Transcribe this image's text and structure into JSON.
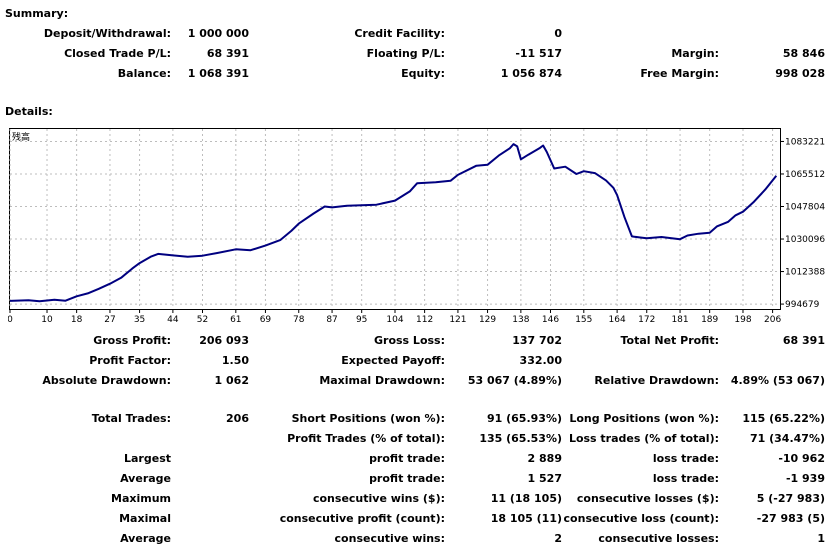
{
  "summary": {
    "heading": "Summary:",
    "deposit_label": "Deposit/Withdrawal:",
    "deposit_value": "1 000 000",
    "credit_label": "Credit Facility:",
    "credit_value": "0",
    "closed_pl_label": "Closed Trade P/L:",
    "closed_pl_value": "68 391",
    "floating_pl_label": "Floating P/L:",
    "floating_pl_value": "-11 517",
    "margin_label": "Margin:",
    "margin_value": "58 846",
    "balance_label": "Balance:",
    "balance_value": "1 068 391",
    "equity_label": "Equity:",
    "equity_value": "1 056 874",
    "free_margin_label": "Free Margin:",
    "free_margin_value": "998 028"
  },
  "details": {
    "heading": "Details:",
    "gross_profit_label": "Gross Profit:",
    "gross_profit_value": "206 093",
    "gross_loss_label": "Gross Loss:",
    "gross_loss_value": "137 702",
    "total_net_label": "Total Net Profit:",
    "total_net_value": "68 391",
    "profit_factor_label": "Profit Factor:",
    "profit_factor_value": "1.50",
    "expected_payoff_label": "Expected Payoff:",
    "expected_payoff_value": "332.00",
    "abs_dd_label": "Absolute Drawdown:",
    "abs_dd_value": "1 062",
    "max_dd_label": "Maximal Drawdown:",
    "max_dd_value": "53 067 (4.89%)",
    "rel_dd_label": "Relative Drawdown:",
    "rel_dd_value": "4.89% (53 067)",
    "total_trades_label": "Total Trades:",
    "total_trades_value": "206",
    "short_label": "Short Positions (won %):",
    "short_value": "91 (65.93%)",
    "long_label": "Long Positions (won %):",
    "long_value": "115 (65.22%)",
    "profit_trades_label": "Profit Trades (% of total):",
    "profit_trades_value": "135 (65.53%)",
    "loss_trades_label": "Loss trades (% of total):",
    "loss_trades_value": "71 (34.47%)",
    "largest_label": "Largest",
    "largest_profit_label": "profit trade:",
    "largest_profit_value": "2 889",
    "largest_loss_label": "loss trade:",
    "largest_loss_value": "-10 962",
    "average_label": "Average",
    "average_profit_label": "profit trade:",
    "average_profit_value": "1 527",
    "average_loss_label": "loss trade:",
    "average_loss_value": "-1 939",
    "maximum_label": "Maximum",
    "max_cons_wins_label": "consecutive wins ($):",
    "max_cons_wins_value": "11 (18 105)",
    "max_cons_losses_label": "consecutive losses ($):",
    "max_cons_losses_value": "5 (-27 983)",
    "maximal_label": "Maximal",
    "maximal_profit_label": "consecutive profit (count):",
    "maximal_profit_value": "18 105 (11)",
    "maximal_loss_label": "consecutive loss (count):",
    "maximal_loss_value": "-27 983 (5)",
    "average2_label": "Average",
    "avg_cons_wins_label": "consecutive wins:",
    "avg_cons_wins_value": "2",
    "avg_cons_losses_label": "consecutive losses:",
    "avg_cons_losses_value": "1"
  },
  "chart_data": {
    "type": "line",
    "title": "残高",
    "line_color": "#000080",
    "grid": true,
    "y_ticks": [
      "1083221",
      "1065512",
      "1047804",
      "1030096",
      "1012388",
      "994679"
    ],
    "x_ticks": [
      "0",
      "10",
      "18",
      "27",
      "35",
      "44",
      "52",
      "61",
      "69",
      "78",
      "87",
      "95",
      "104",
      "112",
      "121",
      "129",
      "138",
      "146",
      "155",
      "164",
      "172",
      "181",
      "189",
      "198",
      "206"
    ],
    "xlim": [
      0,
      208
    ],
    "ylim": [
      992000,
      1090000
    ],
    "series": [
      {
        "name": "残高",
        "points": [
          [
            0,
            996400
          ],
          [
            5,
            996800
          ],
          [
            8,
            996200
          ],
          [
            12,
            997000
          ],
          [
            15,
            996500
          ],
          [
            18,
            998900
          ],
          [
            21,
            1000500
          ],
          [
            24,
            1003000
          ],
          [
            27,
            1005800
          ],
          [
            30,
            1009000
          ],
          [
            33,
            1014000
          ],
          [
            35,
            1017000
          ],
          [
            38,
            1020500
          ],
          [
            40,
            1022000
          ],
          [
            44,
            1021200
          ],
          [
            48,
            1020500
          ],
          [
            52,
            1021000
          ],
          [
            56,
            1022500
          ],
          [
            61,
            1024500
          ],
          [
            65,
            1024000
          ],
          [
            69,
            1026500
          ],
          [
            73,
            1029500
          ],
          [
            76,
            1034500
          ],
          [
            78,
            1038500
          ],
          [
            82,
            1044000
          ],
          [
            85,
            1047800
          ],
          [
            87,
            1047300
          ],
          [
            91,
            1048200
          ],
          [
            95,
            1048500
          ],
          [
            99,
            1048800
          ],
          [
            104,
            1051000
          ],
          [
            108,
            1056000
          ],
          [
            110,
            1060500
          ],
          [
            115,
            1061000
          ],
          [
            119,
            1061800
          ],
          [
            121,
            1065000
          ],
          [
            126,
            1070000
          ],
          [
            129,
            1070500
          ],
          [
            132,
            1075500
          ],
          [
            135,
            1079500
          ],
          [
            136,
            1081800
          ],
          [
            137,
            1080500
          ],
          [
            138,
            1073500
          ],
          [
            140,
            1076000
          ],
          [
            143,
            1079500
          ],
          [
            144,
            1081000
          ],
          [
            145,
            1077500
          ],
          [
            147,
            1068500
          ],
          [
            150,
            1069500
          ],
          [
            153,
            1065500
          ],
          [
            155,
            1067000
          ],
          [
            158,
            1066000
          ],
          [
            161,
            1062000
          ],
          [
            163,
            1058000
          ],
          [
            164,
            1054000
          ],
          [
            166,
            1042000
          ],
          [
            168,
            1031500
          ],
          [
            170,
            1031000
          ],
          [
            172,
            1030500
          ],
          [
            176,
            1031200
          ],
          [
            181,
            1030000
          ],
          [
            183,
            1032000
          ],
          [
            186,
            1033000
          ],
          [
            189,
            1033500
          ],
          [
            191,
            1037000
          ],
          [
            194,
            1039500
          ],
          [
            196,
            1043000
          ],
          [
            198,
            1045000
          ],
          [
            201,
            1050500
          ],
          [
            204,
            1057000
          ],
          [
            207,
            1064500
          ]
        ]
      }
    ]
  }
}
